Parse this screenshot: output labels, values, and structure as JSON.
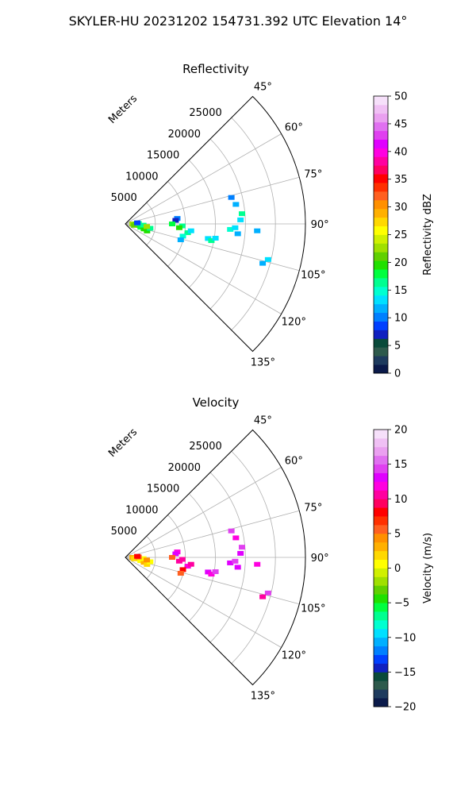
{
  "suptitle": "SKYLER-HU  20231202  154731.392 UTC Elevation 14°",
  "chart_data": [
    {
      "type": "heatmap",
      "subtype": "polar-sector",
      "title": "Reflectivity",
      "range_label": "Meters",
      "range_ticks": [
        5000,
        10000,
        15000,
        20000,
        25000
      ],
      "range_tick_labels": [
        "5000",
        "10000",
        "15000",
        "20000",
        "25000"
      ],
      "range_max": 30000,
      "azimuth_range": [
        45,
        135
      ],
      "azimuth_ticks": [
        45,
        60,
        75,
        90,
        105,
        120,
        135
      ],
      "azimuth_tick_labels": [
        "45°",
        "60°",
        "75°",
        "90°",
        "105°",
        "120°",
        "135°"
      ],
      "grid": true,
      "colorbar": {
        "label": "Reflectivity dBZ",
        "vmin": 0,
        "vmax": 50,
        "ticks": [
          0,
          5,
          10,
          15,
          20,
          25,
          30,
          35,
          40,
          45,
          50
        ],
        "tick_labels": [
          "0",
          "5",
          "10",
          "15",
          "20",
          "25",
          "30",
          "35",
          "40",
          "45",
          "50"
        ],
        "colormap": "pyart_HomeyerRainbow-like",
        "colors": [
          "#0b1a4a",
          "#1e3b5e",
          "#2e5a4c",
          "#0a4a3a",
          "#1020c0",
          "#0040ff",
          "#0080ff",
          "#00b0ff",
          "#00e0ff",
          "#00ffd0",
          "#00ff90",
          "#00ff40",
          "#20e000",
          "#60d000",
          "#a0e000",
          "#d0f000",
          "#ffff00",
          "#ffd800",
          "#ffb000",
          "#ff9000",
          "#ff6020",
          "#ff3000",
          "#ff0000",
          "#ff0060",
          "#ff00a0",
          "#ff00e0",
          "#e000ff",
          "#e040f0",
          "#e070f0",
          "#eaa0f0",
          "#f0c0f4",
          "#f6e0fa"
        ]
      },
      "echoes": [
        {
          "az": 90,
          "r": 1200,
          "value": 22
        },
        {
          "az": 93,
          "r": 1800,
          "value": 20
        },
        {
          "az": 96,
          "r": 2400,
          "value": 19
        },
        {
          "az": 99,
          "r": 1500,
          "value": 21
        },
        {
          "az": 102,
          "r": 2600,
          "value": 18
        },
        {
          "az": 105,
          "r": 3200,
          "value": 20
        },
        {
          "az": 94,
          "r": 3000,
          "value": 17
        },
        {
          "az": 88,
          "r": 2200,
          "value": 16
        },
        {
          "az": 108,
          "r": 3800,
          "value": 19
        },
        {
          "az": 100,
          "r": 4200,
          "value": 16
        },
        {
          "az": 85,
          "r": 2000,
          "value": 9
        },
        {
          "az": 97,
          "r": 3600,
          "value": 22
        },
        {
          "az": 84,
          "r": 8700,
          "value": 10
        },
        {
          "az": 86,
          "r": 8400,
          "value": 7
        },
        {
          "az": 92,
          "r": 9500,
          "value": 17
        },
        {
          "az": 94,
          "r": 9000,
          "value": 20
        },
        {
          "az": 98,
          "r": 10500,
          "value": 16
        },
        {
          "az": 96,
          "r": 11000,
          "value": 14
        },
        {
          "az": 102,
          "r": 9800,
          "value": 15
        },
        {
          "az": 106,
          "r": 9600,
          "value": 11
        },
        {
          "az": 90,
          "r": 7800,
          "value": 18
        },
        {
          "az": 100,
          "r": 14000,
          "value": 14
        },
        {
          "az": 101,
          "r": 14600,
          "value": 16
        },
        {
          "az": 99,
          "r": 15200,
          "value": 13
        },
        {
          "az": 93,
          "r": 17500,
          "value": 15
        },
        {
          "az": 92,
          "r": 18300,
          "value": 13
        },
        {
          "az": 88,
          "r": 19200,
          "value": 14
        },
        {
          "az": 85,
          "r": 19500,
          "value": 16
        },
        {
          "az": 80,
          "r": 18700,
          "value": 12
        },
        {
          "az": 95,
          "r": 18800,
          "value": 12
        },
        {
          "az": 104,
          "r": 24500,
          "value": 14
        },
        {
          "az": 106,
          "r": 23800,
          "value": 11
        },
        {
          "az": 76,
          "r": 18200,
          "value": 10
        },
        {
          "az": 93,
          "r": 22000,
          "value": 11
        }
      ]
    },
    {
      "type": "heatmap",
      "subtype": "polar-sector",
      "title": "Velocity",
      "range_label": "Meters",
      "range_ticks": [
        5000,
        10000,
        15000,
        20000,
        25000
      ],
      "range_tick_labels": [
        "5000",
        "10000",
        "15000",
        "20000",
        "25000"
      ],
      "range_max": 30000,
      "azimuth_range": [
        45,
        135
      ],
      "azimuth_ticks": [
        45,
        60,
        75,
        90,
        105,
        120,
        135
      ],
      "azimuth_tick_labels": [
        "45°",
        "60°",
        "75°",
        "90°",
        "105°",
        "120°",
        "135°"
      ],
      "grid": true,
      "colorbar": {
        "label": "Velocity (m/s)",
        "vmin": -20,
        "vmax": 20,
        "ticks": [
          -20,
          -15,
          -10,
          -5,
          0,
          5,
          10,
          15,
          20
        ],
        "tick_labels": [
          "−20",
          "−15",
          "−10",
          "−5",
          "0",
          "5",
          "10",
          "15",
          "20"
        ],
        "colormap": "pyart_HomeyerRainbow-like",
        "colors": [
          "#0b1a4a",
          "#1e3b5e",
          "#2e5a4c",
          "#0a4a3a",
          "#1020c0",
          "#0040ff",
          "#0080ff",
          "#00b0ff",
          "#00e0ff",
          "#00ffd0",
          "#00ff90",
          "#00ff40",
          "#20e000",
          "#60d000",
          "#a0e000",
          "#d0f000",
          "#ffff00",
          "#ffd800",
          "#ffb000",
          "#ff9000",
          "#ff6020",
          "#ff3000",
          "#ff0000",
          "#ff0060",
          "#ff00a0",
          "#ff00e0",
          "#e000ff",
          "#e040f0",
          "#e070f0",
          "#eaa0f0",
          "#f0c0f4",
          "#f6e0fa"
        ]
      },
      "echoes": [
        {
          "az": 90,
          "r": 1200,
          "value": 3
        },
        {
          "az": 93,
          "r": 1800,
          "value": 2
        },
        {
          "az": 96,
          "r": 2400,
          "value": 1
        },
        {
          "az": 99,
          "r": 1500,
          "value": 2
        },
        {
          "az": 102,
          "r": 2600,
          "value": 1
        },
        {
          "az": 105,
          "r": 3200,
          "value": 3
        },
        {
          "az": 94,
          "r": 3000,
          "value": 0
        },
        {
          "az": 88,
          "r": 2200,
          "value": 6
        },
        {
          "az": 108,
          "r": 3800,
          "value": 2
        },
        {
          "az": 100,
          "r": 4200,
          "value": 1
        },
        {
          "az": 85,
          "r": 2000,
          "value": 8
        },
        {
          "az": 97,
          "r": 3600,
          "value": 4
        },
        {
          "az": 84,
          "r": 8700,
          "value": 12
        },
        {
          "az": 86,
          "r": 8400,
          "value": 13
        },
        {
          "az": 92,
          "r": 9500,
          "value": 11
        },
        {
          "az": 94,
          "r": 9000,
          "value": 10
        },
        {
          "az": 98,
          "r": 10500,
          "value": 12
        },
        {
          "az": 96,
          "r": 11000,
          "value": 11
        },
        {
          "az": 102,
          "r": 9800,
          "value": 8
        },
        {
          "az": 106,
          "r": 9600,
          "value": 6
        },
        {
          "az": 90,
          "r": 7800,
          "value": 5
        },
        {
          "az": 100,
          "r": 14000,
          "value": 13
        },
        {
          "az": 101,
          "r": 14600,
          "value": 12
        },
        {
          "az": 99,
          "r": 15200,
          "value": 14
        },
        {
          "az": 93,
          "r": 17500,
          "value": 13
        },
        {
          "az": 92,
          "r": 18300,
          "value": 14
        },
        {
          "az": 88,
          "r": 19200,
          "value": 13
        },
        {
          "az": 85,
          "r": 19500,
          "value": 14
        },
        {
          "az": 80,
          "r": 18700,
          "value": 12
        },
        {
          "az": 95,
          "r": 18800,
          "value": 13
        },
        {
          "az": 104,
          "r": 24500,
          "value": 14
        },
        {
          "az": 106,
          "r": 23800,
          "value": 10
        },
        {
          "az": 76,
          "r": 18200,
          "value": 14
        },
        {
          "az": 93,
          "r": 22000,
          "value": 12
        }
      ]
    }
  ]
}
